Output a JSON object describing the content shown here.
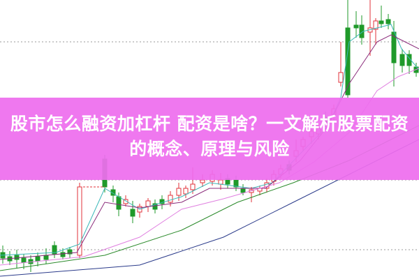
{
  "title": "股市怎么融资加杠杆 配资是啥？一文解析股票配资的概念、原理与风险",
  "colors": {
    "banner": "#ee6eee",
    "up": "#e0303a",
    "down": "#1f9a2a",
    "title_text": "#ffffff"
  },
  "background": "candlestick-chart-with-moving-averages"
}
